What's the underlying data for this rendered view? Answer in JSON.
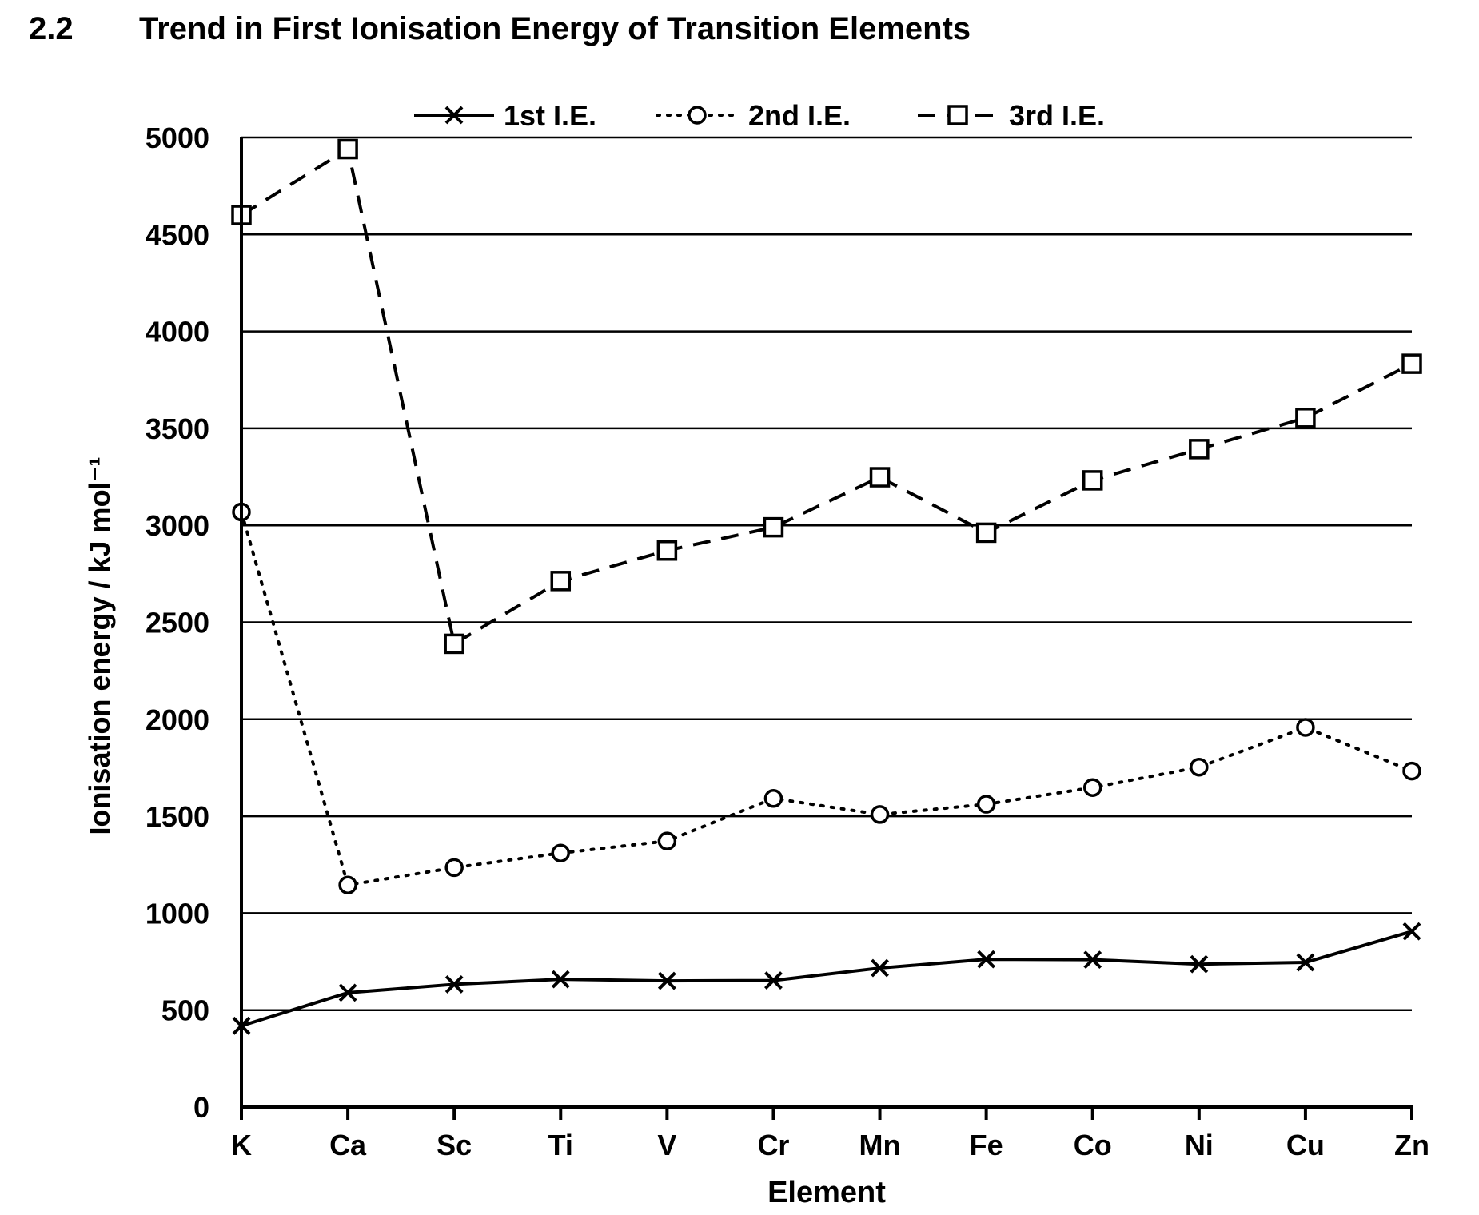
{
  "header": {
    "section_number": "2.2",
    "title": "Trend in First Ionisation Energy of Transition Elements"
  },
  "chart_data": {
    "type": "line",
    "title": "Trend in First Ionisation Energy of Transition Elements",
    "xlabel": "Element",
    "ylabel": "Ionisation energy / kJ mol⁻¹",
    "categories": [
      "K",
      "Ca",
      "Sc",
      "Ti",
      "V",
      "Cr",
      "Mn",
      "Fe",
      "Co",
      "Ni",
      "Cu",
      "Zn"
    ],
    "yticks": [
      0,
      500,
      1000,
      1500,
      2000,
      2500,
      3000,
      3500,
      4000,
      4500,
      5000
    ],
    "ylim": [
      0,
      5000
    ],
    "grid": true,
    "legend_position": "top",
    "series": [
      {
        "name": "1st I.E.",
        "marker": "x",
        "line_style": "solid",
        "values": [
          419,
          590,
          633,
          659,
          651,
          653,
          717,
          762,
          760,
          737,
          746,
          906
        ]
      },
      {
        "name": "2nd I.E.",
        "marker": "circle",
        "line_style": "dotted",
        "values": [
          3069,
          1145,
          1235,
          1310,
          1372,
          1592,
          1509,
          1562,
          1648,
          1753,
          1958,
          1733
        ]
      },
      {
        "name": "3rd I.E.",
        "marker": "square",
        "line_style": "dashed",
        "values": [
          4600,
          4940,
          2389,
          2713,
          2870,
          2990,
          3248,
          2962,
          3232,
          3393,
          3554,
          3833
        ]
      }
    ]
  }
}
